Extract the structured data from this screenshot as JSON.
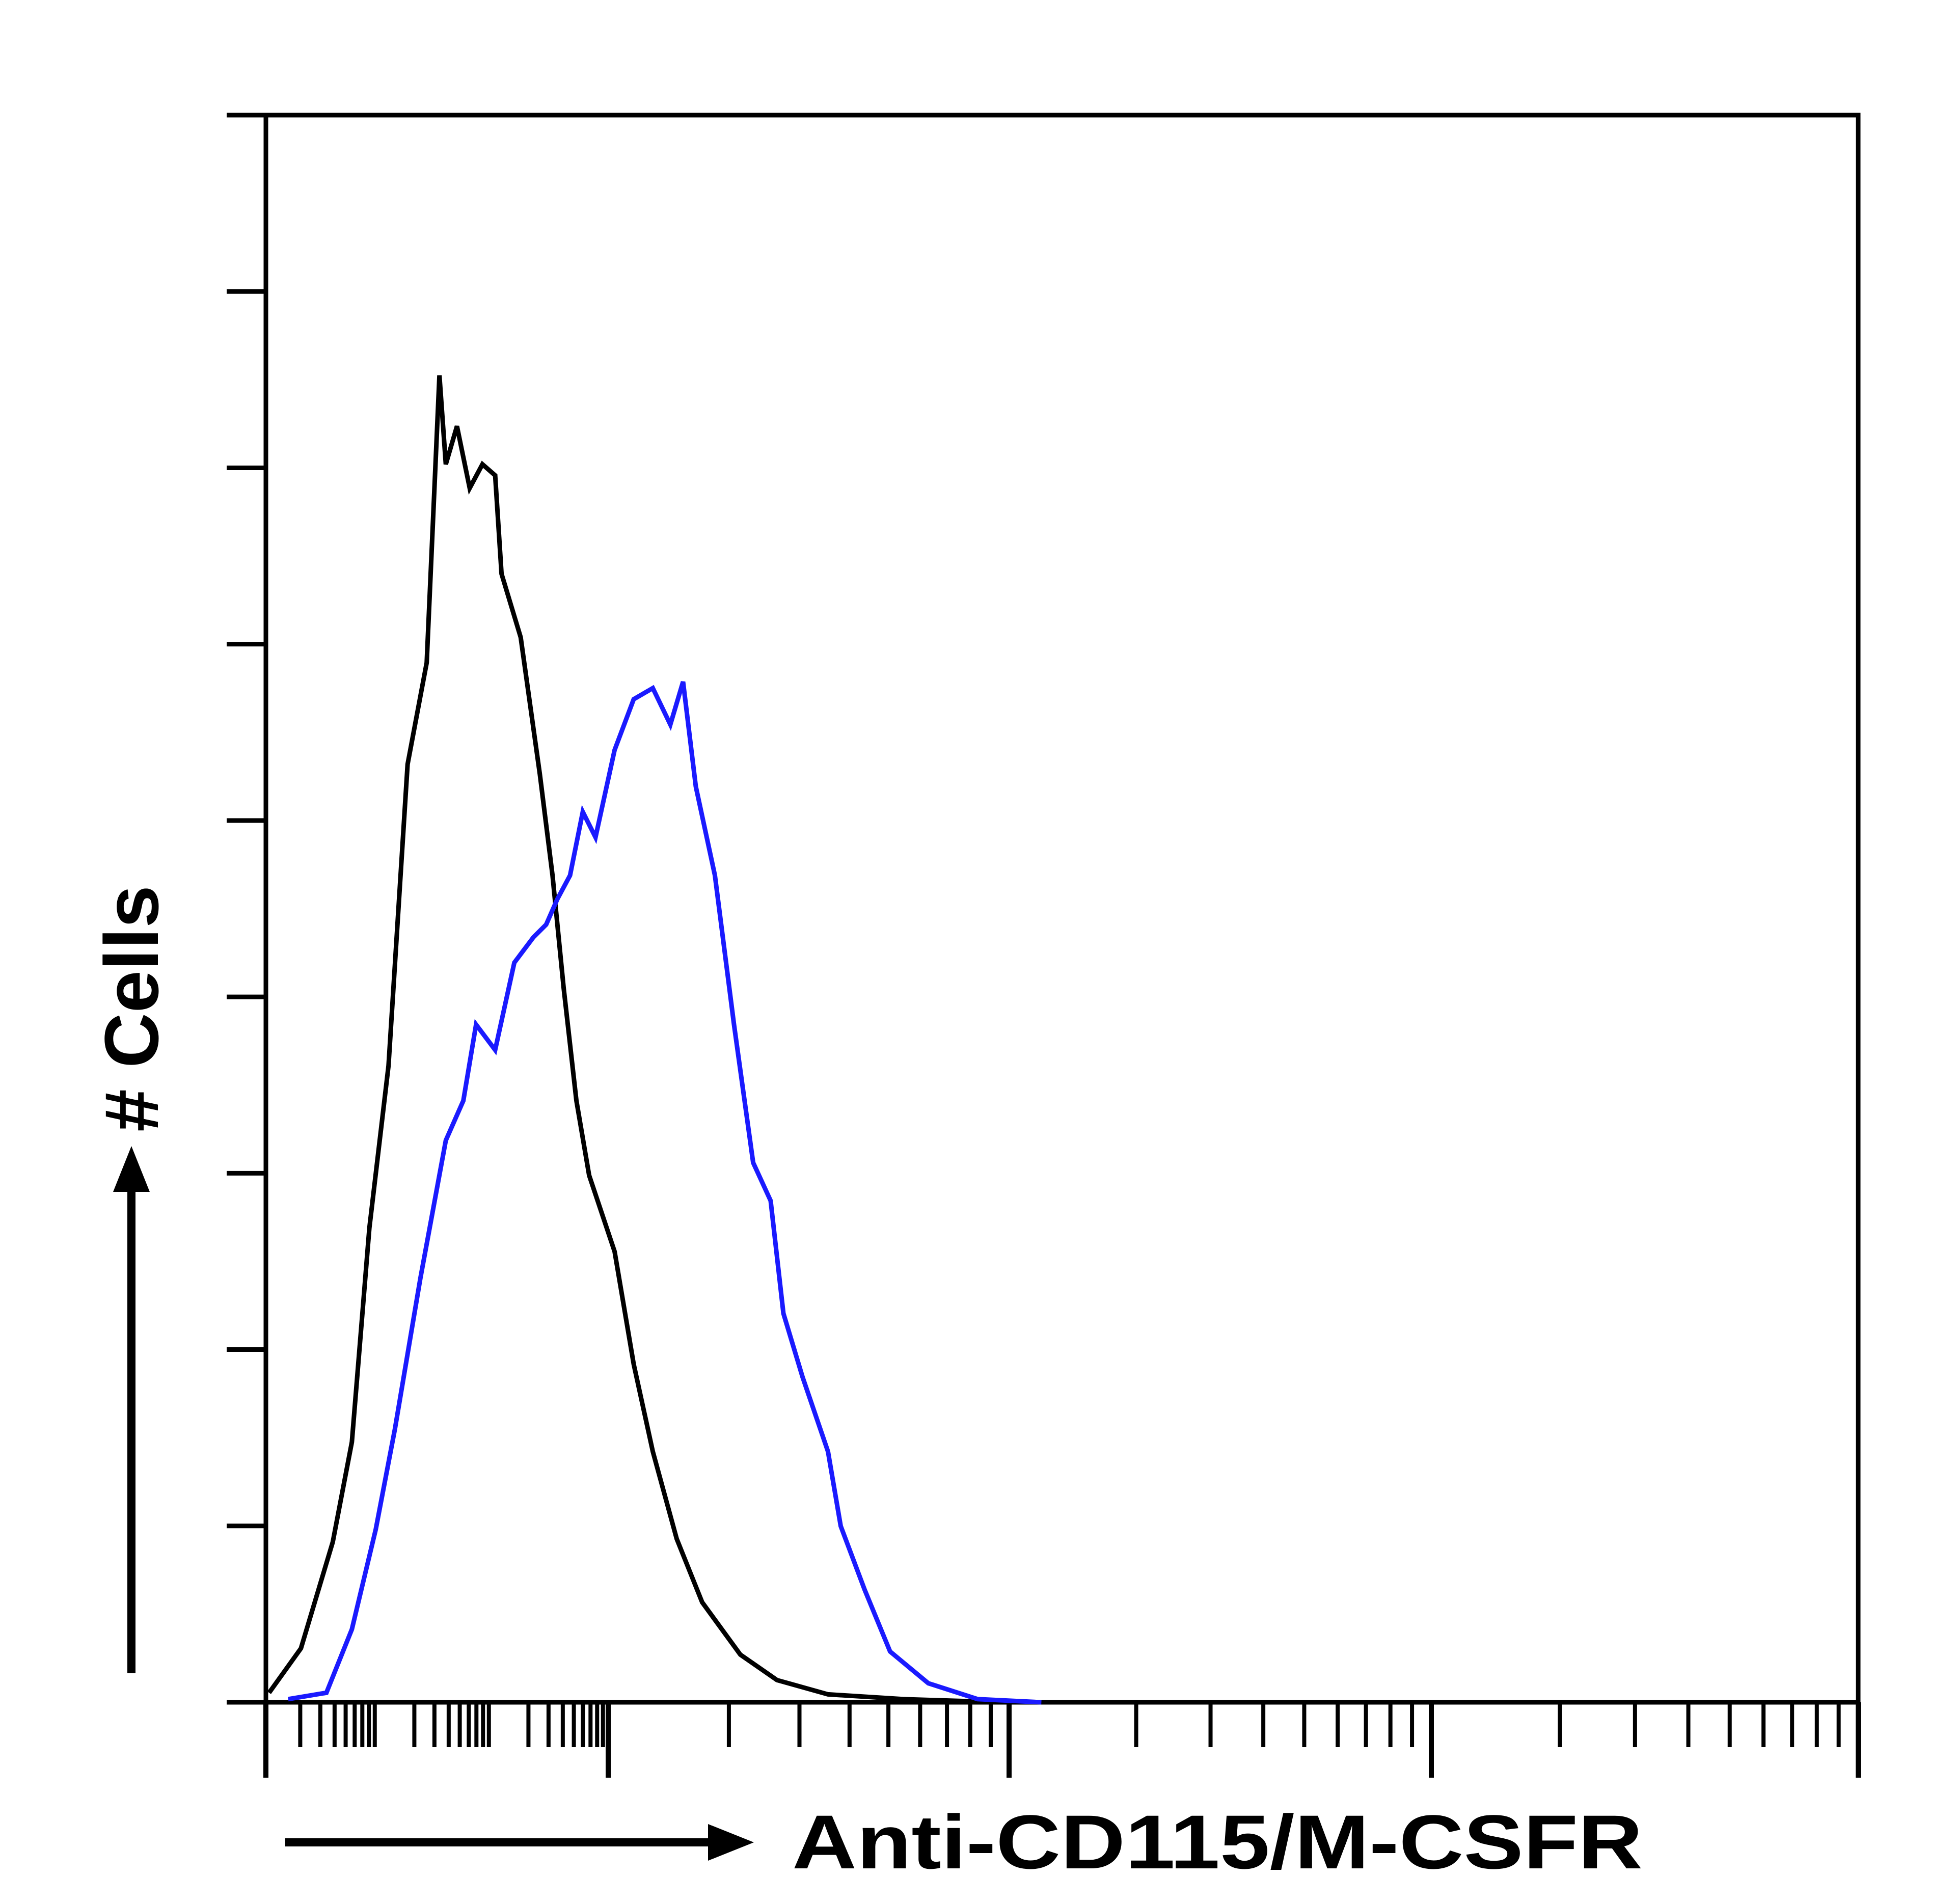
{
  "chart_data": {
    "type": "line",
    "title": "",
    "xlabel": "Anti-CD115/M-CSFR",
    "ylabel": "# Cells",
    "x_scale": "log",
    "x_major_decades": 4,
    "xlim": [
      0,
      100
    ],
    "ylim": [
      0,
      100
    ],
    "y_tick_count": 9,
    "tick_labels_shown": false,
    "grid": false,
    "legend": "none",
    "series": [
      {
        "color": "#000000",
        "x": [
          0.2,
          2.2,
          4.2,
          5.4,
          6.5,
          7.7,
          8.9,
          10.1,
          10.9,
          11.3,
          12.0,
          12.8,
          13.6,
          14.4,
          14.8,
          16.0,
          17.2,
          18.0,
          18.7,
          19.5,
          20.3,
          21.9,
          23.1,
          24.3,
          25.8,
          27.4,
          29.8,
          32.1,
          35.3,
          40.0,
          46.3
        ],
        "y": [
          0.6,
          3.4,
          10.1,
          16.4,
          29.9,
          40.1,
          59.1,
          65.5,
          83.6,
          78.0,
          80.4,
          76.5,
          78.0,
          77.3,
          71.1,
          67.1,
          58.5,
          52.1,
          45.0,
          37.9,
          33.2,
          28.4,
          21.3,
          15.8,
          10.3,
          6.3,
          3.0,
          1.4,
          0.5,
          0.2,
          0
        ]
      },
      {
        "color": "#1a1aff",
        "x": [
          1.4,
          3.8,
          5.4,
          6.9,
          8.1,
          9.7,
          11.3,
          12.4,
          13.2,
          14.4,
          15.6,
          16.8,
          17.6,
          18.3,
          19.1,
          19.9,
          20.7,
          21.9,
          23.1,
          24.3,
          25.4,
          26.2,
          27.0,
          28.2,
          29.4,
          30.6,
          31.7,
          32.5,
          33.7,
          35.3,
          36.1,
          37.6,
          39.2,
          41.6,
          44.7,
          48.7
        ],
        "y": [
          0.2,
          0.6,
          4.6,
          10.9,
          17.2,
          26.7,
          35.4,
          37.9,
          42.7,
          41.1,
          46.6,
          48.2,
          49.0,
          50.6,
          52.1,
          56.1,
          54.5,
          60.0,
          63.2,
          63.9,
          61.6,
          64.3,
          57.7,
          52.1,
          42.7,
          34.0,
          31.6,
          24.5,
          20.5,
          15.8,
          11.1,
          7.1,
          3.2,
          1.2,
          0.2,
          0
        ]
      }
    ]
  }
}
